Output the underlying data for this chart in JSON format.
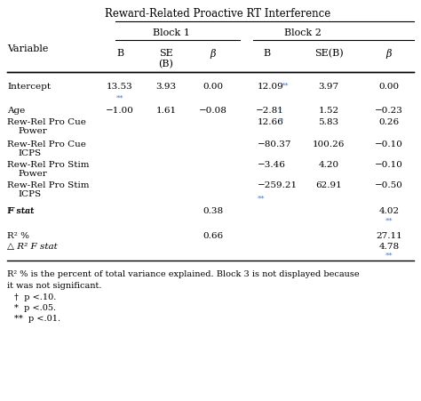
{
  "title": "Reward-Related Proactive RT Interference",
  "block1_label": "Block 1",
  "block2_label": "Block 2",
  "variable_col": "Variable",
  "sig_color": "#4472C4",
  "text_color": "#000000",
  "bg_color": "#ffffff",
  "fs_title": 8.5,
  "fs_header": 8.0,
  "fs_body": 7.5,
  "fs_note": 7.0,
  "fs_sig": 6.0
}
